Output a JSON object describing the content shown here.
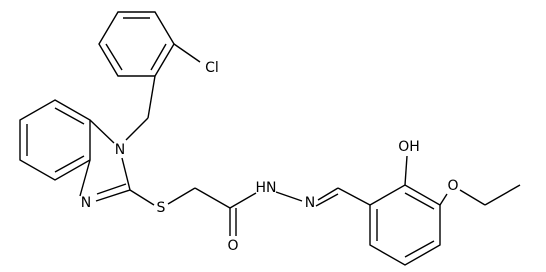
{
  "atoms": [
    {
      "label": "Cl"
    },
    {
      "label": "N"
    },
    {
      "label": "N"
    },
    {
      "label": "S"
    },
    {
      "label": "O"
    },
    {
      "label": "HN"
    },
    {
      "label": "N"
    },
    {
      "label": "OH"
    },
    {
      "label": "O"
    }
  ]
}
